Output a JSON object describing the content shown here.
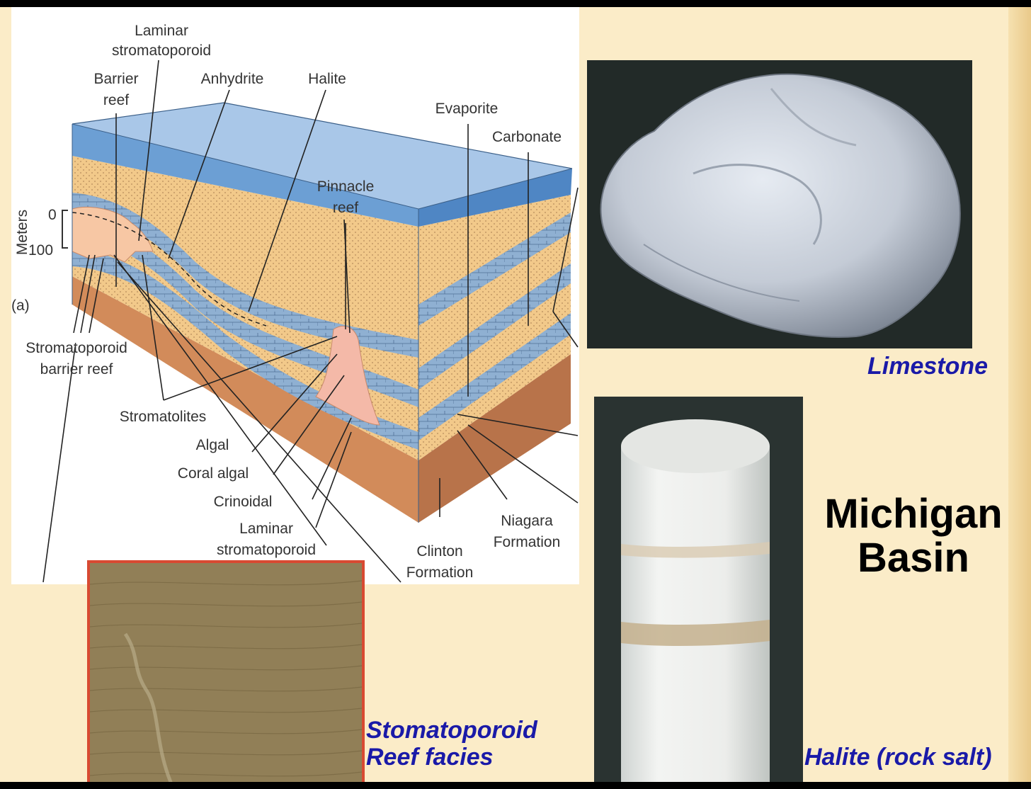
{
  "title": {
    "line1": "Michigan",
    "line2": "Basin"
  },
  "diagram": {
    "labels": {
      "laminar_strom_top_1": "Laminar",
      "laminar_strom_top_2": "stromatoporoid",
      "barrier_reef_1": "Barrier",
      "barrier_reef_2": "reef",
      "anhydrite": "Anhydrite",
      "halite": "Halite",
      "evaporite": "Evaporite",
      "carbonate": "Carbonate",
      "pinnacle_reef_1": "Pinnacle",
      "pinnacle_reef_2": "reef",
      "meters": "Meters",
      "scale_0": "0",
      "scale_100": "100",
      "part_a": "(a)",
      "strom_barrier_1": "Stromatoporoid",
      "strom_barrier_2": "barrier reef",
      "stromatolites": "Stromatolites",
      "algal": "Algal",
      "coral_algal": "Coral algal",
      "crinoidal": "Crinoidal",
      "laminar_strom_bottom_1": "Laminar",
      "laminar_strom_bottom_2": "stromatoporoid",
      "niagara_1": "Niagara",
      "niagara_2": "Formation",
      "clinton_1": "Clinton",
      "clinton_2": "Formation"
    }
  },
  "captions": {
    "limestone": "Limestone",
    "strom_line1": "Stomatoporoid",
    "strom_line2": "Reef facies",
    "halite": "Halite (rock salt)"
  },
  "colors": {
    "caption": "#1a1aa8",
    "background": "#fbecc8",
    "water": "#6c9fd4",
    "evaporite": "#f2c98a",
    "carbonate": "#7fa3c9",
    "base": "#d28b5a"
  }
}
